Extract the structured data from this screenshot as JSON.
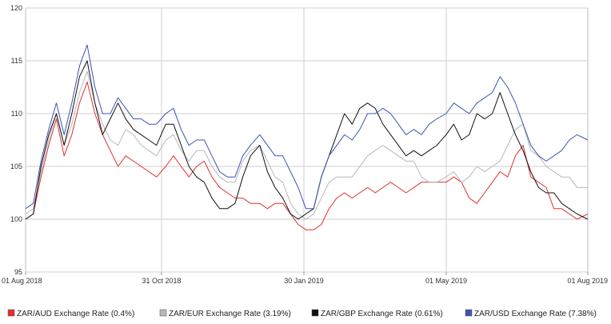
{
  "chart_data": {
    "type": "line",
    "title": "",
    "xlabel": "",
    "ylabel": "",
    "ylim": [
      95,
      120
    ],
    "y_ticks": [
      "95",
      "100",
      "105",
      "110",
      "115",
      "120"
    ],
    "x_ticks": [
      "01 Aug 2018",
      "31 Oct 2018",
      "30 Jan 2019",
      "01 May 2019",
      "01 Aug 2019"
    ],
    "grid": true,
    "legend_position": "bottom",
    "x": [
      "2018-08-01",
      "2018-08-06",
      "2018-08-11",
      "2018-08-16",
      "2018-08-21",
      "2018-08-26",
      "2018-08-31",
      "2018-09-05",
      "2018-09-10",
      "2018-09-15",
      "2018-09-20",
      "2018-09-25",
      "2018-09-30",
      "2018-10-05",
      "2018-10-10",
      "2018-10-15",
      "2018-10-20",
      "2018-10-25",
      "2018-10-31",
      "2018-11-05",
      "2018-11-10",
      "2018-11-15",
      "2018-11-20",
      "2018-11-25",
      "2018-11-30",
      "2018-12-05",
      "2018-12-10",
      "2018-12-15",
      "2018-12-20",
      "2018-12-25",
      "2018-12-31",
      "2019-01-05",
      "2019-01-10",
      "2019-01-15",
      "2019-01-20",
      "2019-01-25",
      "2019-01-30",
      "2019-02-04",
      "2019-02-09",
      "2019-02-14",
      "2019-02-19",
      "2019-02-24",
      "2019-03-01",
      "2019-03-06",
      "2019-03-11",
      "2019-03-16",
      "2019-03-21",
      "2019-03-26",
      "2019-03-31",
      "2019-04-05",
      "2019-04-10",
      "2019-04-15",
      "2019-04-20",
      "2019-04-25",
      "2019-05-01",
      "2019-05-06",
      "2019-05-11",
      "2019-05-16",
      "2019-05-21",
      "2019-05-26",
      "2019-05-31",
      "2019-06-05",
      "2019-06-10",
      "2019-06-15",
      "2019-06-20",
      "2019-06-25",
      "2019-06-30",
      "2019-07-05",
      "2019-07-10",
      "2019-07-15",
      "2019-07-20",
      "2019-07-25",
      "2019-08-01"
    ],
    "series": [
      {
        "name": "ZAR/AUD Exchange Rate (0.4%)",
        "color": "#e03030",
        "values": [
          100,
          100.5,
          104,
          107,
          109.5,
          106,
          108,
          111,
          113,
          110,
          108,
          106.5,
          105,
          106,
          105.5,
          105,
          104.5,
          104,
          105,
          106,
          105,
          104,
          105,
          105.5,
          104,
          103,
          102.5,
          102,
          102,
          101.5,
          101.5,
          101,
          101.5,
          101.5,
          100.5,
          99.5,
          99,
          99,
          99.5,
          101,
          102,
          102.5,
          102,
          102.5,
          103,
          102.5,
          103,
          103.5,
          103,
          102.5,
          103,
          103.5,
          103.5,
          103.5,
          103.5,
          104,
          103.5,
          102,
          101.5,
          102.5,
          103.5,
          104.5,
          104,
          106,
          107,
          104,
          103.5,
          103,
          101,
          101,
          100.5,
          100,
          100.5
        ]
      },
      {
        "name": "ZAR/EUR Exchange Rate (3.19%)",
        "color": "#b8b8b8",
        "values": [
          100.5,
          101,
          104.5,
          107.5,
          110,
          107,
          109,
          112,
          114,
          111,
          109,
          107.5,
          107,
          108.5,
          108,
          107,
          106.5,
          106,
          107.5,
          108,
          106.5,
          105.5,
          106.5,
          106.5,
          105,
          104,
          103.5,
          103.5,
          105.5,
          106.5,
          107,
          105.5,
          104,
          103.5,
          101.5,
          100.5,
          100,
          100.5,
          102,
          103.5,
          104,
          104,
          104,
          105,
          106,
          106.5,
          107,
          106.5,
          106,
          105.5,
          105.5,
          104,
          103.5,
          103.5,
          104,
          104.5,
          103.5,
          104,
          105,
          104.5,
          105,
          105.5,
          107,
          108.5,
          109,
          106.5,
          106,
          105,
          104.5,
          104,
          104,
          103,
          103
        ]
      },
      {
        "name": "ZAR/GBP Exchange Rate (0.61%)",
        "color": "#111111",
        "values": [
          100,
          100.5,
          105,
          108,
          110,
          107,
          110,
          113.5,
          115,
          111,
          108,
          109.5,
          111,
          109.5,
          108.5,
          108,
          107.5,
          107,
          109,
          109,
          107,
          105,
          104,
          103.5,
          102,
          101,
          101,
          101.5,
          104,
          106,
          107,
          104.5,
          103,
          102,
          100.5,
          100,
          100.5,
          101,
          104,
          106,
          108,
          110,
          109,
          110.5,
          111,
          110.5,
          109,
          108,
          107,
          106,
          106.5,
          106,
          106.5,
          107,
          108,
          109,
          107.5,
          108,
          110,
          109.5,
          110,
          112,
          110,
          108,
          106.5,
          104.5,
          103,
          102.5,
          102.5,
          101.5,
          101,
          100.5,
          100
        ]
      },
      {
        "name": "ZAR/USD Exchange Rate (7.38%)",
        "color": "#3a55b4",
        "values": [
          101,
          101.5,
          105.5,
          108.5,
          111,
          108,
          111,
          114.5,
          116.5,
          112.5,
          110,
          110,
          111.5,
          110.5,
          109.5,
          109.5,
          109,
          109,
          110,
          110.5,
          108.5,
          107,
          107.5,
          107.5,
          106,
          104.5,
          104,
          104,
          106,
          107,
          108,
          107,
          106,
          106,
          104.5,
          103,
          101,
          101,
          104,
          106,
          107,
          108,
          107.5,
          108.5,
          110,
          110,
          110.5,
          110,
          109,
          108,
          108.5,
          108,
          109,
          109.5,
          110,
          111,
          110.5,
          110,
          111,
          111.5,
          112,
          113.5,
          112.5,
          111,
          109,
          107,
          106,
          105.5,
          106,
          106.5,
          107.5,
          108,
          107.5
        ]
      }
    ]
  }
}
